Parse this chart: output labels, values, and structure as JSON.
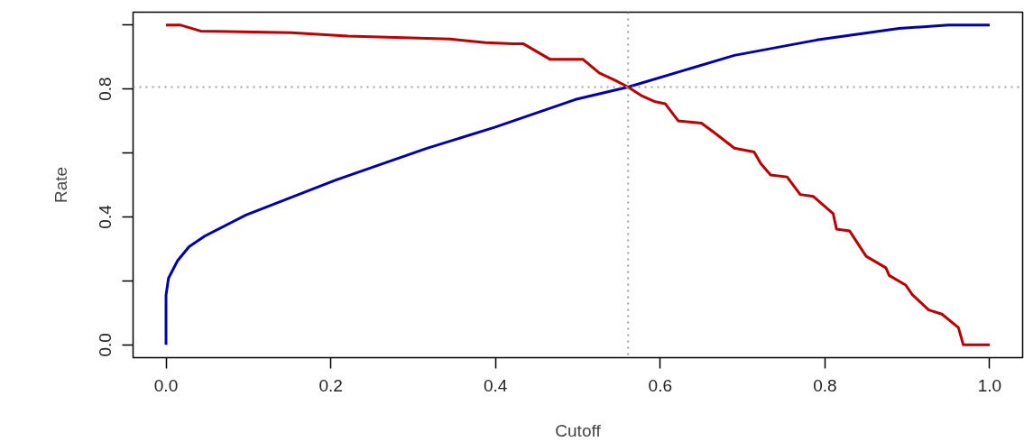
{
  "chart_data": {
    "type": "line",
    "xlabel": "Cutoff",
    "ylabel": "Rate",
    "xlim": [
      -0.04,
      1.04
    ],
    "ylim": [
      -0.04,
      1.04
    ],
    "xticks": [
      {
        "value": 0,
        "label": "0.0"
      },
      0.2,
      0.4,
      0.6,
      0.8,
      {
        "value": 1,
        "label": "1.0"
      }
    ],
    "yticks": [
      {
        "value": 0,
        "label": "0.0"
      },
      {
        "value": 0.2,
        "label": null
      },
      0.4,
      {
        "value": 0.6,
        "label": null
      },
      0.8,
      {
        "value": 1.0,
        "label": null
      }
    ],
    "grid": false,
    "line_style": "solid",
    "series": [
      {
        "color": "#0000b0",
        "x": [
          0,
          0,
          0.003,
          0.014,
          0.028,
          0.047,
          0.097,
          0.206,
          0.316,
          0.399,
          0.497,
          0.561,
          0.69,
          0.79,
          0.89,
          0.95,
          1.0
        ],
        "values": [
          0,
          0.155,
          0.208,
          0.263,
          0.307,
          0.34,
          0.406,
          0.515,
          0.614,
          0.68,
          0.767,
          0.806,
          0.905,
          0.953,
          0.989,
          1.0,
          1.0
        ]
      },
      {
        "color": "#c00000",
        "x": [
          0,
          0.017,
          0.042,
          0.152,
          0.221,
          0.345,
          0.388,
          0.421,
          0.434,
          0.466,
          0.506,
          0.526,
          0.546,
          0.561,
          0.578,
          0.594,
          0.606,
          0.622,
          0.65,
          0.666,
          0.69,
          0.714,
          0.722,
          0.734,
          0.754,
          0.77,
          0.786,
          0.81,
          0.814,
          0.83,
          0.85,
          0.874,
          0.878,
          0.898,
          0.906,
          0.926,
          0.942,
          0.962,
          0.968,
          1.0
        ],
        "values": [
          1.0,
          1.0,
          0.981,
          0.976,
          0.965,
          0.956,
          0.945,
          0.941,
          0.941,
          0.893,
          0.893,
          0.85,
          0.826,
          0.806,
          0.778,
          0.76,
          0.754,
          0.7,
          0.693,
          0.663,
          0.615,
          0.603,
          0.567,
          0.531,
          0.525,
          0.47,
          0.464,
          0.41,
          0.362,
          0.356,
          0.277,
          0.241,
          0.217,
          0.187,
          0.157,
          0.109,
          0.096,
          0.054,
          0.0,
          0.0
        ]
      }
    ],
    "ref_lines": [
      {
        "axis": "x",
        "value": 0.561,
        "color": "#a0a0a0",
        "line_style": "dotted"
      },
      {
        "axis": "y",
        "value": 0.806,
        "color": "#a0a0a0",
        "line_style": "dotted"
      }
    ]
  }
}
